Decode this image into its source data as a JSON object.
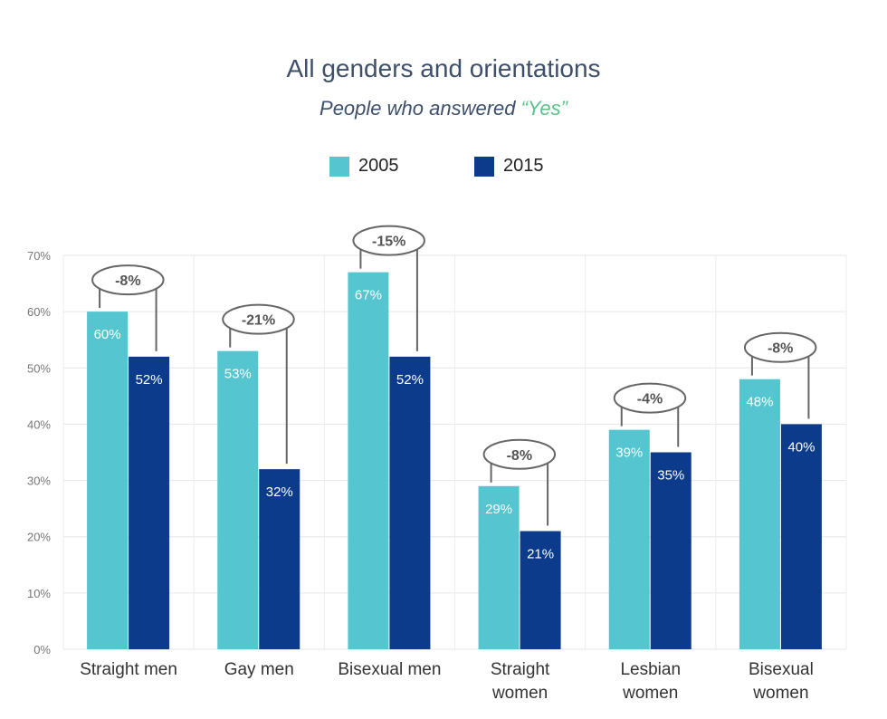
{
  "title": "All genders and orientations",
  "subtitle_prefix": "People who answered ",
  "subtitle_highlight": "“Yes”",
  "chart_data": {
    "type": "bar",
    "categories": [
      [
        "Straight men"
      ],
      [
        "Gay men"
      ],
      [
        "Bisexual men"
      ],
      [
        "Straight",
        "women"
      ],
      [
        "Lesbian",
        "women"
      ],
      [
        "Bisexual",
        "women"
      ]
    ],
    "series": [
      {
        "name": "2005",
        "color": "#55c5cf",
        "values": [
          60,
          53,
          67,
          29,
          39,
          48
        ]
      },
      {
        "name": "2015",
        "color": "#0b3b8a",
        "values": [
          52,
          32,
          52,
          21,
          35,
          40
        ]
      }
    ],
    "value_labels": [
      [
        "60%",
        "53%",
        "67%",
        "29%",
        "39%",
        "48%"
      ],
      [
        "52%",
        "32%",
        "52%",
        "21%",
        "35%",
        "40%"
      ]
    ],
    "differences": [
      "-8%",
      "-21%",
      "-15%",
      "-8%",
      "-4%",
      "-8%"
    ],
    "yticks": [
      0,
      10,
      20,
      30,
      40,
      50,
      60,
      70
    ],
    "ytick_labels": [
      "0%",
      "10%",
      "20%",
      "30%",
      "40%",
      "50%",
      "60%",
      "70%"
    ],
    "ylim": [
      0,
      70
    ],
    "xlabel": "",
    "ylabel": "",
    "grid": true,
    "legend_position": "top-center"
  }
}
